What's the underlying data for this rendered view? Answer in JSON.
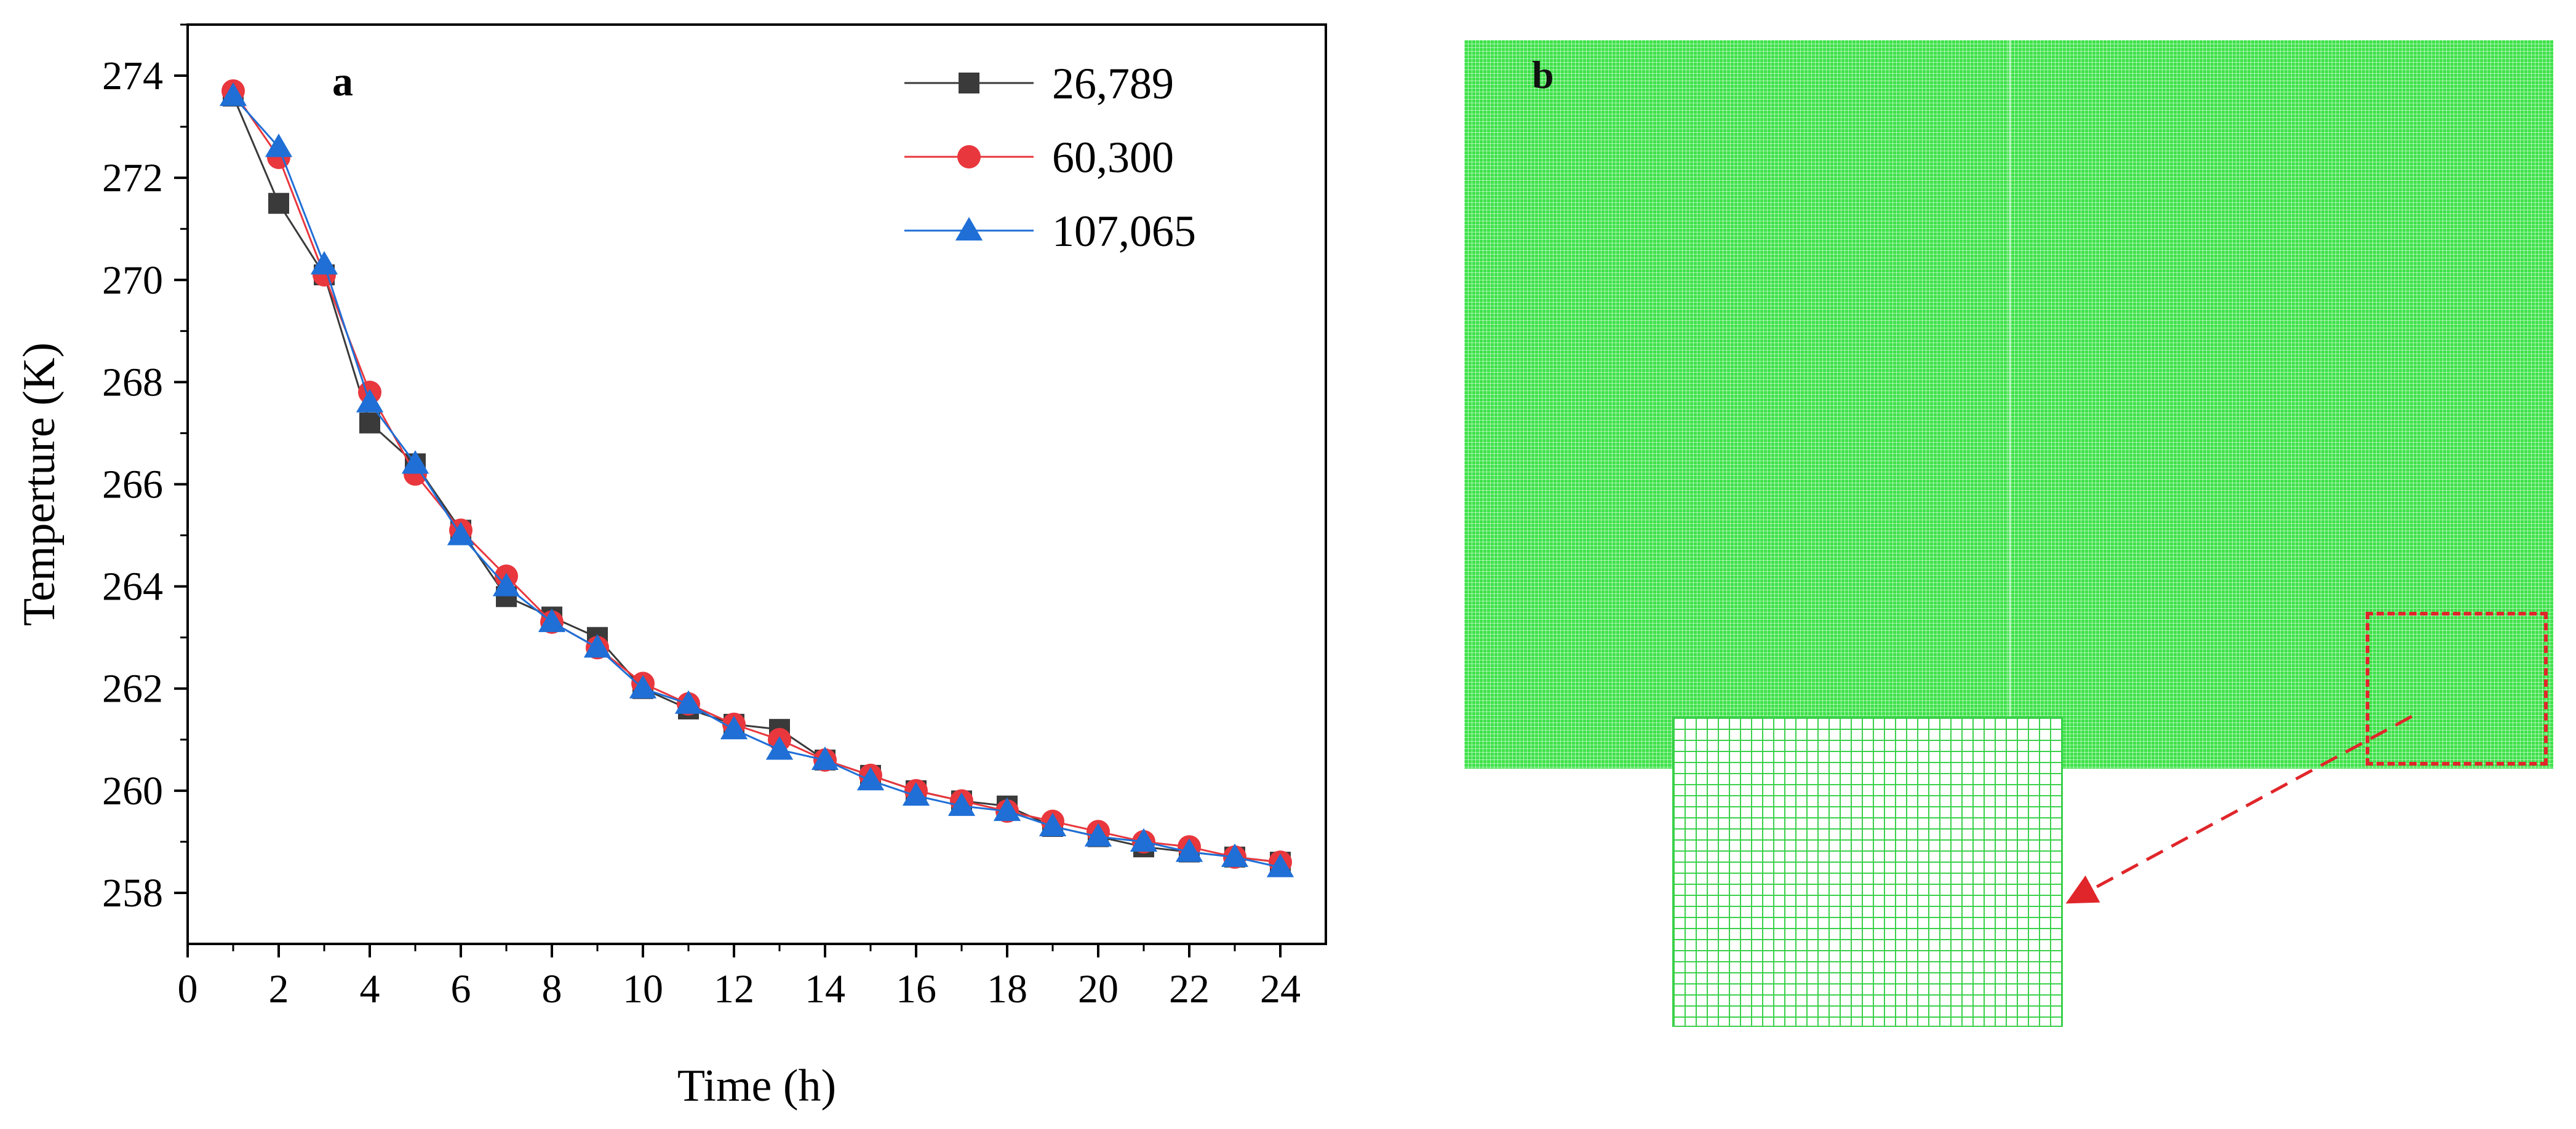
{
  "chart_data": {
    "type": "line",
    "panel_label": "a",
    "title": "",
    "xlabel": "Time (h)",
    "ylabel": "Temperture (K)",
    "xlim": [
      0,
      25
    ],
    "ylim": [
      257,
      275
    ],
    "xticks": [
      0,
      2,
      4,
      6,
      8,
      10,
      12,
      14,
      16,
      18,
      20,
      22,
      24
    ],
    "yticks": [
      258,
      260,
      262,
      264,
      266,
      268,
      270,
      272,
      274
    ],
    "x": [
      1,
      2,
      3,
      4,
      5,
      6,
      7,
      8,
      9,
      10,
      11,
      12,
      13,
      14,
      15,
      16,
      17,
      18,
      19,
      20,
      21,
      22,
      23,
      24
    ],
    "legend_position": "top-right",
    "series": [
      {
        "name": "26,789",
        "color": "#3a3a3a",
        "marker": "square",
        "values": [
          273.6,
          271.5,
          270.1,
          267.2,
          266.4,
          265.1,
          263.8,
          263.4,
          263.0,
          262.0,
          261.6,
          261.3,
          261.2,
          260.6,
          260.3,
          260.0,
          259.8,
          259.7,
          259.3,
          259.1,
          258.9,
          258.8,
          258.7,
          258.6
        ]
      },
      {
        "name": "60,300",
        "color": "#e8373d",
        "marker": "circle",
        "values": [
          273.7,
          272.4,
          270.1,
          267.8,
          266.2,
          265.1,
          264.2,
          263.3,
          262.8,
          262.1,
          261.7,
          261.3,
          261.0,
          260.6,
          260.3,
          260.0,
          259.8,
          259.6,
          259.4,
          259.2,
          259.0,
          258.9,
          258.7,
          258.6
        ]
      },
      {
        "name": "107,065",
        "color": "#1f6fd6",
        "marker": "triangle",
        "values": [
          273.6,
          272.6,
          270.3,
          267.6,
          266.4,
          265.0,
          264.0,
          263.3,
          262.8,
          262.0,
          261.7,
          261.2,
          260.8,
          260.6,
          260.2,
          259.9,
          259.7,
          259.6,
          259.3,
          259.1,
          259.0,
          258.8,
          258.7,
          258.5
        ]
      }
    ]
  },
  "panel_b": {
    "label": "b",
    "mesh_color": "#3fe24a",
    "zoom_box_color": "#e0262a",
    "arrow_color": "#e0262a"
  }
}
